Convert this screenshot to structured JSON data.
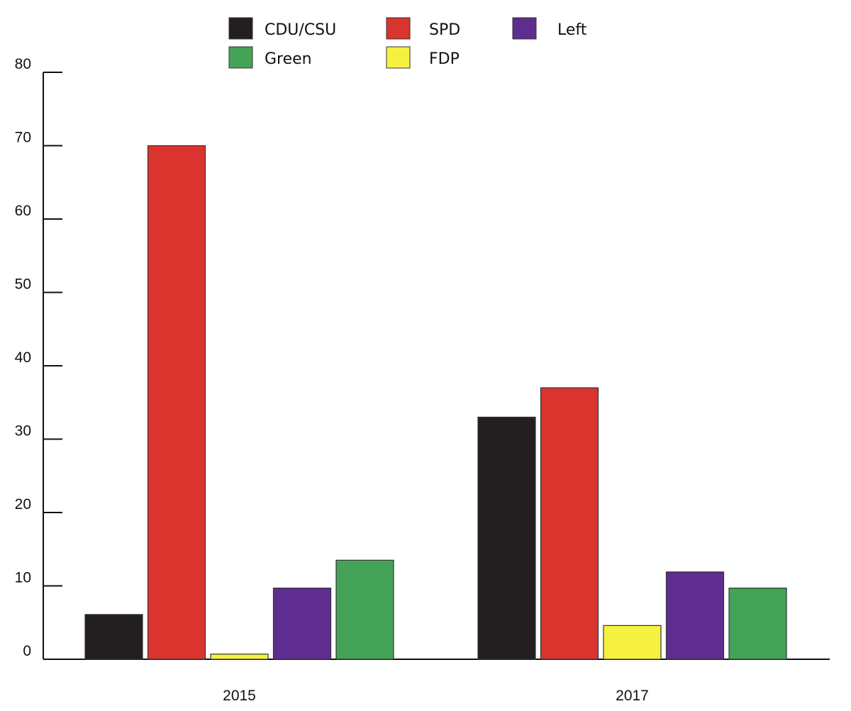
{
  "chart_data": {
    "type": "bar",
    "categories": [
      "2015",
      "2017"
    ],
    "series": [
      {
        "name": "CDU/CSU",
        "color": "#231f20",
        "values": [
          6.1,
          33
        ]
      },
      {
        "name": "SPD",
        "color": "#d9342e",
        "values": [
          70,
          37
        ]
      },
      {
        "name": "FDP",
        "color": "#f6f041",
        "values": [
          0.7,
          4.6
        ]
      },
      {
        "name": "Left",
        "color": "#5e2d8f",
        "values": [
          9.7,
          11.9
        ]
      },
      {
        "name": "Green",
        "color": "#44a356",
        "values": [
          13.5,
          9.7
        ]
      }
    ],
    "legend_order": [
      "CDU/CSU",
      "SPD",
      "Left",
      "Green",
      "FDP"
    ],
    "legend_placement": "top",
    "ylim": [
      0,
      80
    ],
    "yticks": [
      0,
      10,
      20,
      30,
      40,
      50,
      60,
      70,
      80
    ],
    "title": "",
    "xlabel": "",
    "ylabel": "",
    "grid": false
  }
}
